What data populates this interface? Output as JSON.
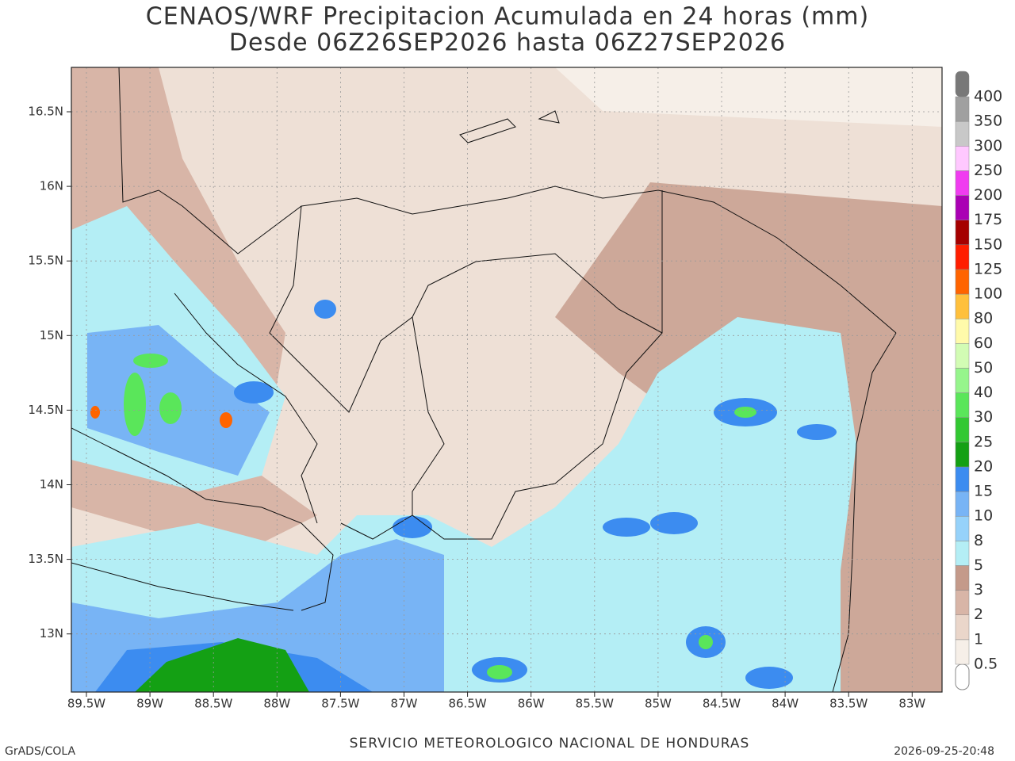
{
  "title": "CENAOS/WRF Precipitacion Acumulada en 24 horas (mm)",
  "subtitle": "Desde 06Z26SEP2026 hasta 06Z27SEP2026",
  "lat_labels": [
    "16.5N",
    "16N",
    "15.5N",
    "15N",
    "14.5N",
    "14N",
    "13.5N",
    "13N"
  ],
  "lon_labels": [
    "89.5W",
    "89W",
    "88.5W",
    "88W",
    "87.5W",
    "87W",
    "86.5W",
    "86W",
    "85.5W",
    "85W",
    "84.5W",
    "84W",
    "83.5W",
    "83W"
  ],
  "colorbar": {
    "levels": [
      {
        "label": "0.5",
        "color": "#f6efe8"
      },
      {
        "label": "1",
        "color": "#ead6ca"
      },
      {
        "label": "2",
        "color": "#d8b5a7"
      },
      {
        "label": "3",
        "color": "#c49a8a"
      },
      {
        "label": "5",
        "color": "#b4eef5"
      },
      {
        "label": "8",
        "color": "#96d2fa"
      },
      {
        "label": "10",
        "color": "#78b4f5"
      },
      {
        "label": "15",
        "color": "#3c8cf0"
      },
      {
        "label": "20",
        "color": "#14a014"
      },
      {
        "label": "25",
        "color": "#32c832"
      },
      {
        "label": "30",
        "color": "#5ae65a"
      },
      {
        "label": "40",
        "color": "#96f58c"
      },
      {
        "label": "50",
        "color": "#d2fcb4"
      },
      {
        "label": "60",
        "color": "#fffaaa"
      },
      {
        "label": "80",
        "color": "#ffc03c"
      },
      {
        "label": "100",
        "color": "#ff6400"
      },
      {
        "label": "125",
        "color": "#ff1e00"
      },
      {
        "label": "150",
        "color": "#a50000"
      },
      {
        "label": "175",
        "color": "#aa00b4"
      },
      {
        "label": "200",
        "color": "#f03cf0"
      },
      {
        "label": "250",
        "color": "#ffc8ff"
      },
      {
        "label": "300",
        "color": "#c8c8c8"
      },
      {
        "label": "350",
        "color": "#a0a0a0"
      },
      {
        "label": "400",
        "color": "#787878"
      }
    ]
  },
  "footer": {
    "left": "GrADS/COLA",
    "center": "SERVICIO METEOROLOGICO NACIONAL DE HONDURAS",
    "right": "2026-09-25-20:48"
  }
}
